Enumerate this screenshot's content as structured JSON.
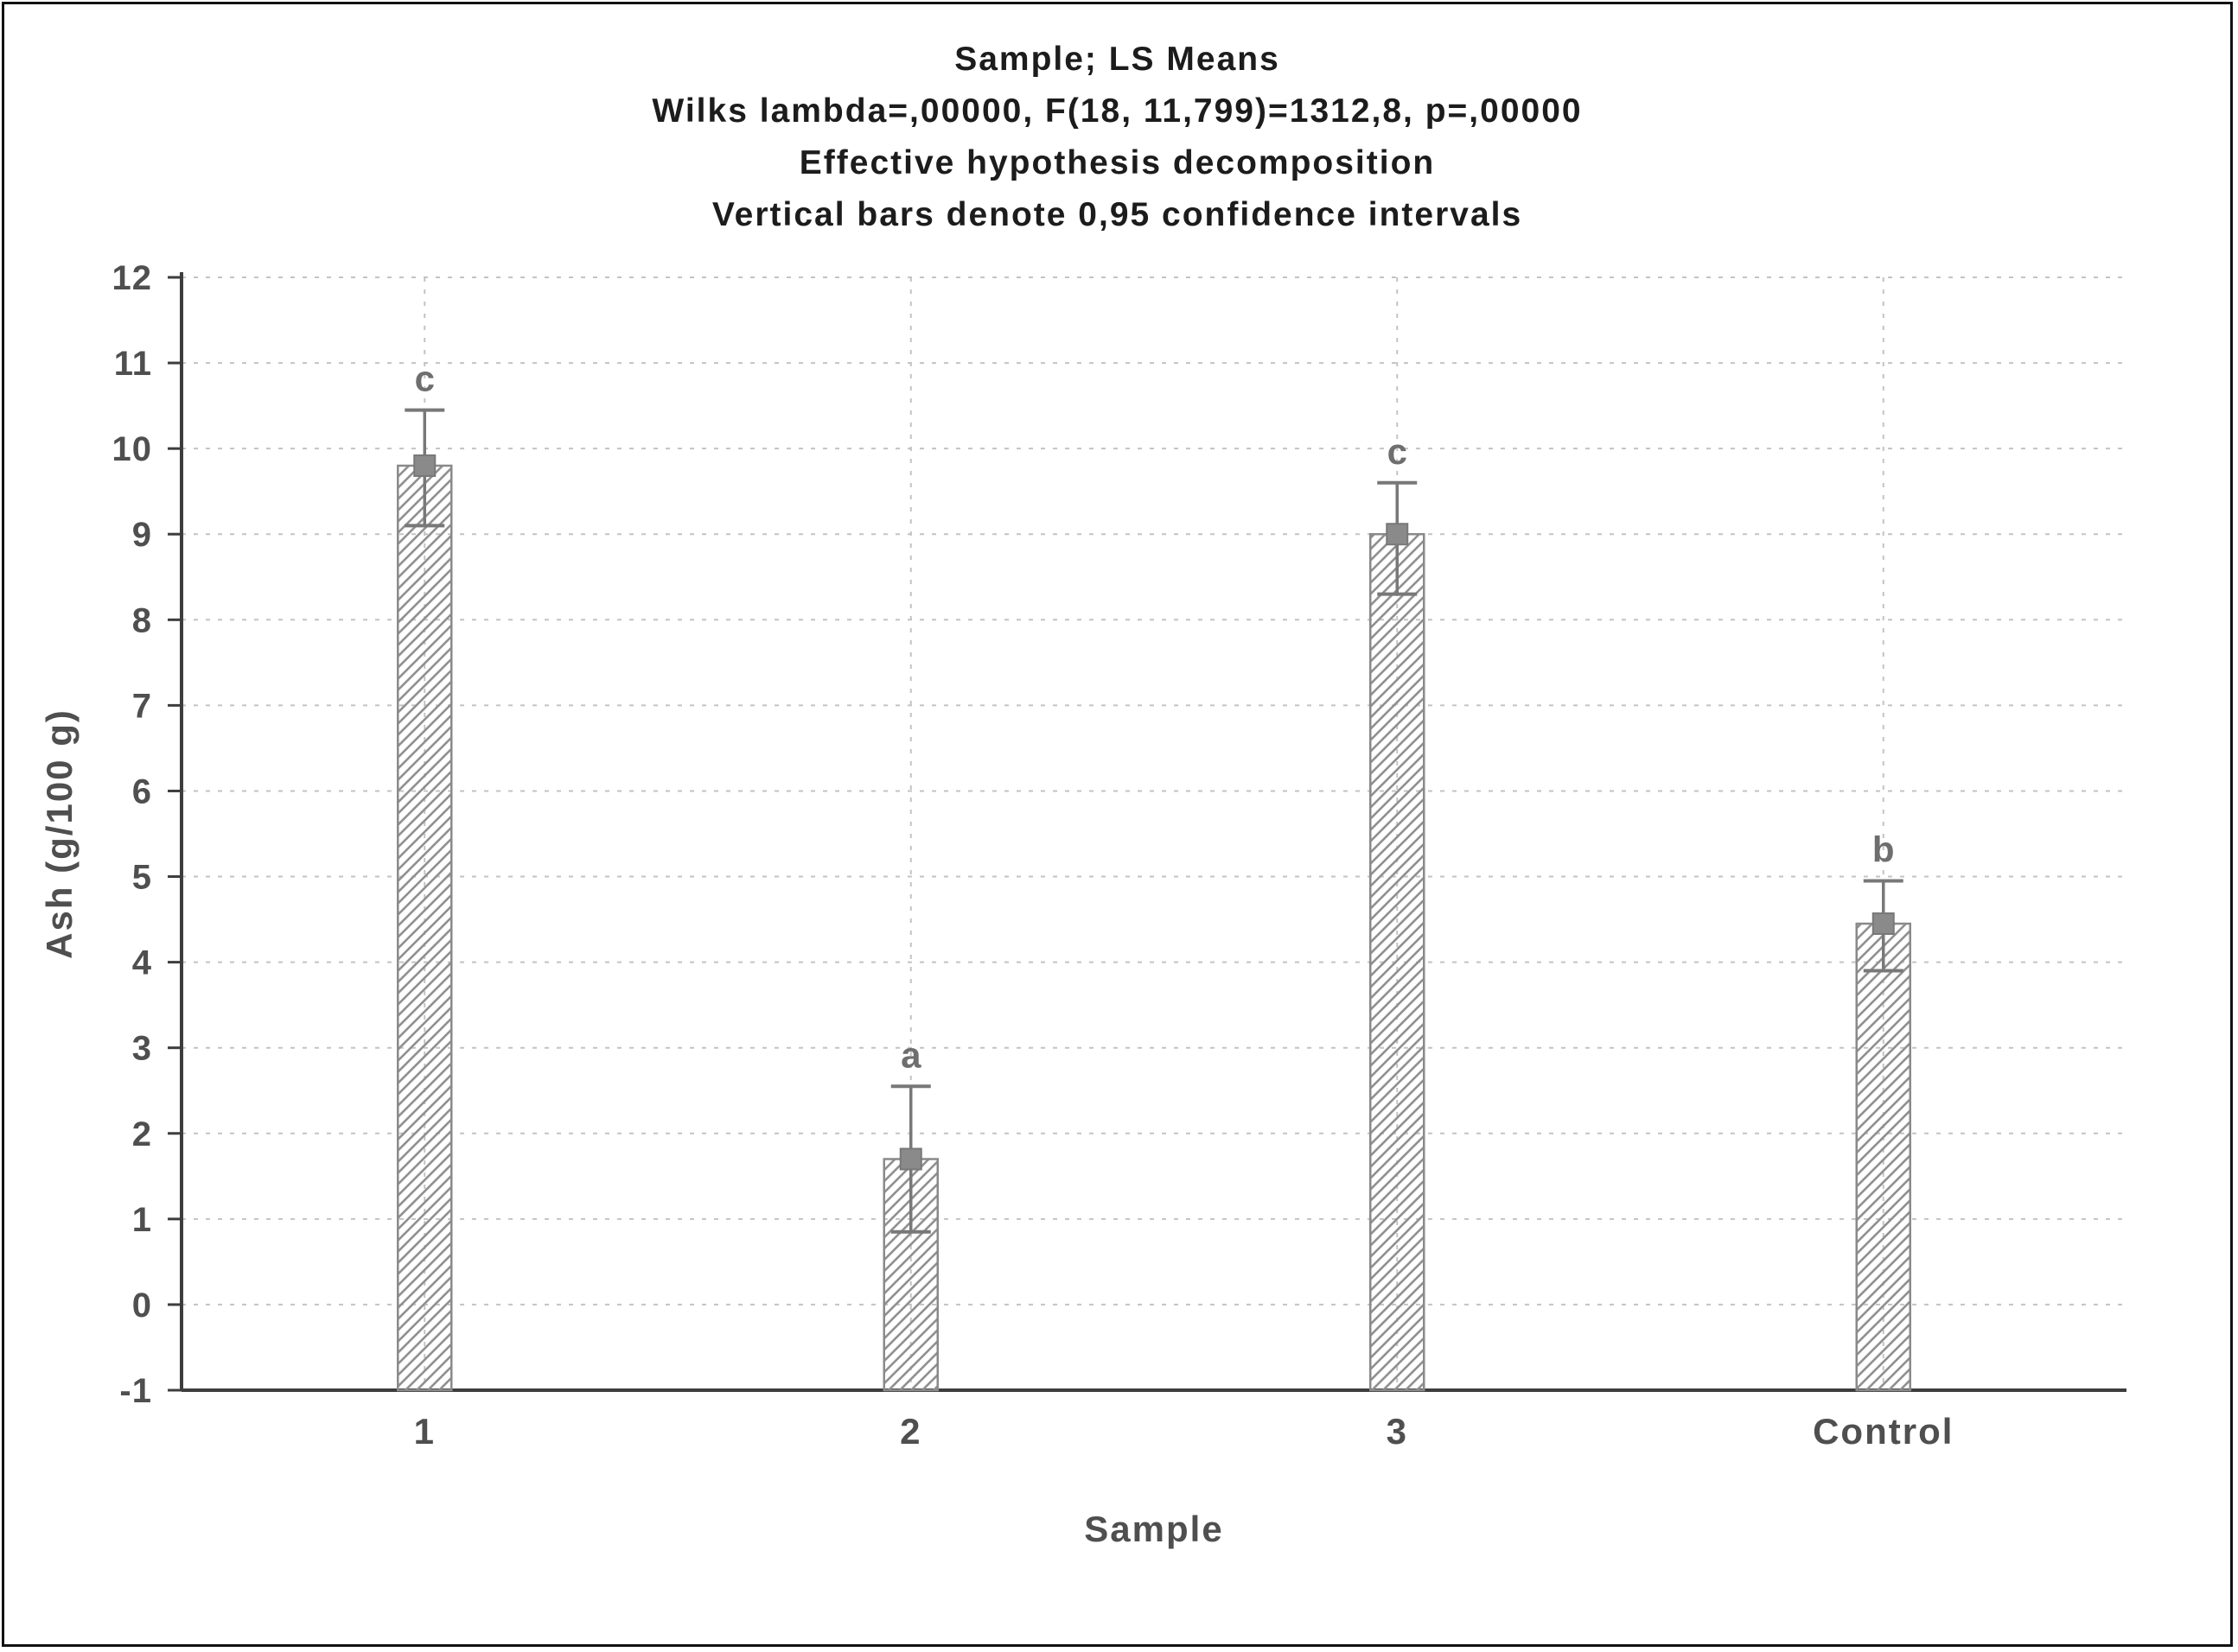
{
  "chart_data": {
    "type": "bar",
    "title_lines": [
      "Sample; LS Means",
      "Wilks lambda=,00000, F(18, 11,799)=1312,8, p=,00000",
      "Effective hypothesis decomposition",
      "Vertical bars denote 0,95 confidence intervals"
    ],
    "categories": [
      "1",
      "2",
      "3",
      "Control"
    ],
    "values": [
      9.8,
      1.7,
      9.0,
      4.45
    ],
    "ci_low": [
      9.1,
      0.85,
      8.3,
      3.9
    ],
    "ci_high": [
      10.45,
      2.55,
      9.6,
      4.95
    ],
    "letters": [
      "c",
      "a",
      "c",
      "b"
    ],
    "xlabel": "Sample",
    "ylabel": "Ash (g/100 g)",
    "ylim": [
      -1,
      12
    ],
    "ytick_step": 1,
    "bar_baseline": -1,
    "legend": "none",
    "grid": "dashed",
    "colors": {
      "bar_outline": "#8a8a8a",
      "bar_hatch": "#909090",
      "error_bar": "#787878",
      "marker": "#8a8a8a",
      "grid_line": "#c3c3c3",
      "axis_line": "#3d3d3d",
      "tick_text": "#4f4f4f",
      "letter_text": "#6e6e6e",
      "title_text": "#1c1c1c"
    }
  }
}
